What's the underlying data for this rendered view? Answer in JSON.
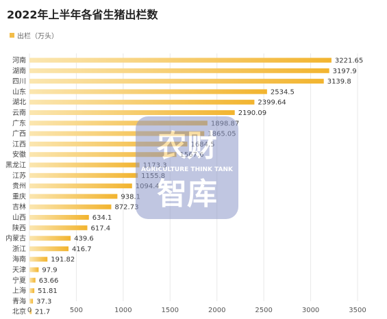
{
  "colors": {
    "bar_start": "#fbe6b0",
    "bar_end": "#f2b42f",
    "grid": "#e8e8e8",
    "watermark": "#8e99c9"
  },
  "chart_data": {
    "type": "bar",
    "orientation": "horizontal",
    "title": "2022年上半年各省生猪出栏数",
    "legend": [
      "出栏（万头）"
    ],
    "legend_position": "top-left",
    "categories": [
      "河南",
      "湖南",
      "四川",
      "山东",
      "湖北",
      "云南",
      "广东",
      "广西",
      "江西",
      "安徽",
      "黑龙江",
      "江苏",
      "贵州",
      "重庆",
      "吉林",
      "山西",
      "陕西",
      "内蒙古",
      "浙江",
      "海南",
      "天津",
      "宁夏",
      "上海",
      "青海",
      "北京"
    ],
    "series": [
      {
        "name": "出栏（万头）",
        "values": [
          3221.65,
          3197.9,
          3139.8,
          2534.5,
          2399.64,
          2190.09,
          1898.87,
          1865.05,
          1684.5,
          1567.6,
          1173.3,
          1155.8,
          1094.4,
          938.1,
          872.73,
          634.1,
          617.4,
          439.6,
          416.7,
          191.82,
          97.9,
          63.66,
          51.81,
          37.3,
          21.7
        ]
      }
    ],
    "value_labels": [
      "3221.65",
      "3197.9",
      "3139.8",
      "2534.5",
      "2399.64",
      "2190.09",
      "1898.87",
      "1865.05",
      "1684.5",
      "1567.6",
      "1173.3",
      "1155.8",
      "1094.4",
      "938.1",
      "872.73",
      "634.1",
      "617.4",
      "439.6",
      "416.7",
      "191.82",
      "97.9",
      "63.66",
      "51.81",
      "37.3",
      "21.7"
    ],
    "xlim": [
      0,
      3500
    ],
    "xticks": [
      "0",
      "500",
      "1000",
      "1500",
      "2000",
      "2500",
      "3000",
      "3500"
    ],
    "grid": "vertical"
  },
  "watermark": {
    "line1": "农财",
    "line2": "AGRICULTURE THINK TANK",
    "line3": "智库"
  }
}
